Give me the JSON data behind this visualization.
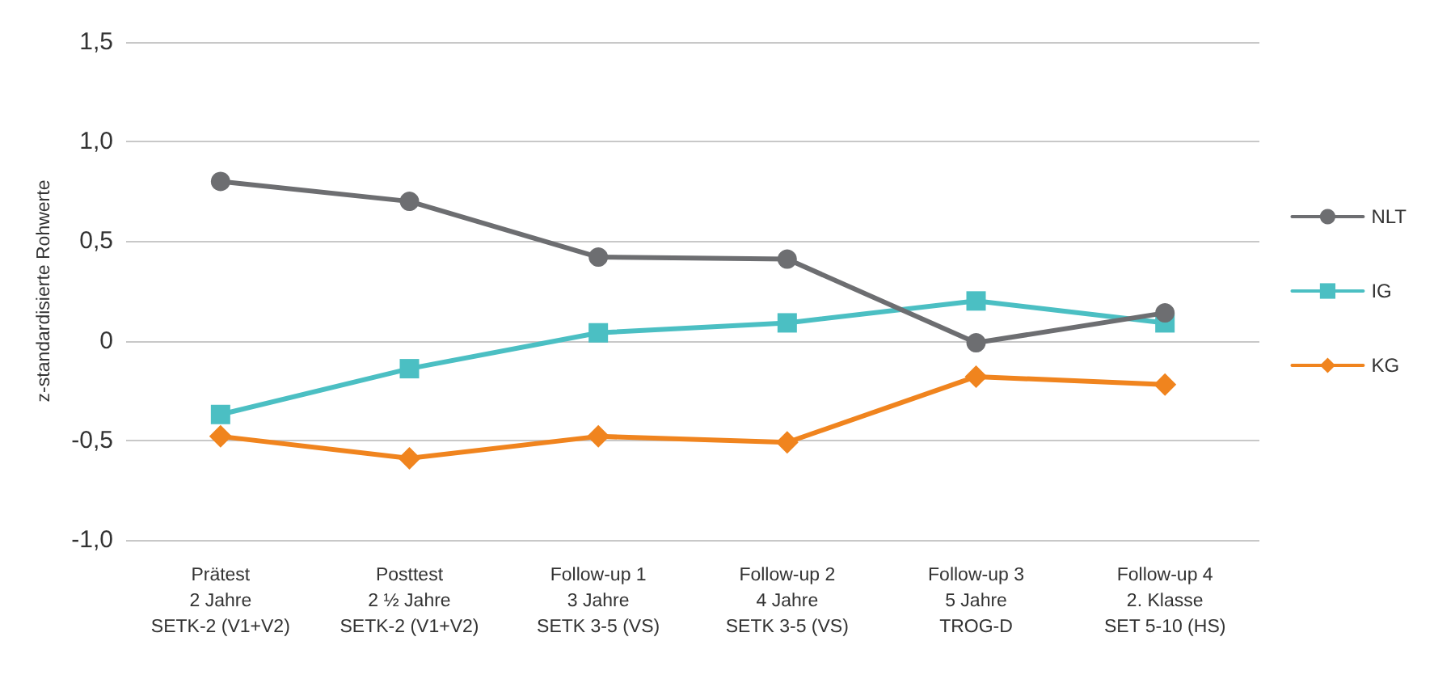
{
  "chart_data": {
    "type": "line",
    "ylabel": "z-standardisierte Rohwerte",
    "categories": [
      "Prätest\n2 Jahre\nSETK-2 (V1+V2)",
      "Posttest\n2 ½ Jahre\nSETK-2 (V1+V2)",
      "Follow-up 1\n3 Jahre\nSETK 3-5 (VS)",
      "Follow-up 2\n4 Jahre\nSETK 3-5 (VS)",
      "Follow-up 3\n5 Jahre\nTROG-D",
      "Follow-up 4\n2. Klasse\nSET 5-10 (HS)"
    ],
    "series": [
      {
        "name": "NLT",
        "color": "#6d6e71",
        "marker": "circle",
        "values": [
          0.8,
          0.7,
          0.42,
          0.41,
          -0.01,
          0.14
        ]
      },
      {
        "name": "IG",
        "color": "#4bbfc3",
        "marker": "square",
        "values": [
          -0.37,
          -0.14,
          0.04,
          0.09,
          0.2,
          0.09
        ]
      },
      {
        "name": "KG",
        "color": "#f0841e",
        "marker": "diamond",
        "values": [
          -0.48,
          -0.59,
          -0.48,
          -0.51,
          -0.18,
          -0.22
        ]
      }
    ],
    "ylim": [
      -1,
      1.5
    ],
    "yticks": [
      {
        "value": -1,
        "label": "-1,0"
      },
      {
        "value": -0.5,
        "label": "-0,5"
      },
      0,
      {
        "value": 0.5,
        "label": "0,5"
      },
      {
        "value": 1,
        "label": "1,0"
      },
      {
        "value": 1.5,
        "label": "1,5"
      }
    ],
    "grid": "y",
    "legend": "right",
    "line_style": "solid"
  }
}
